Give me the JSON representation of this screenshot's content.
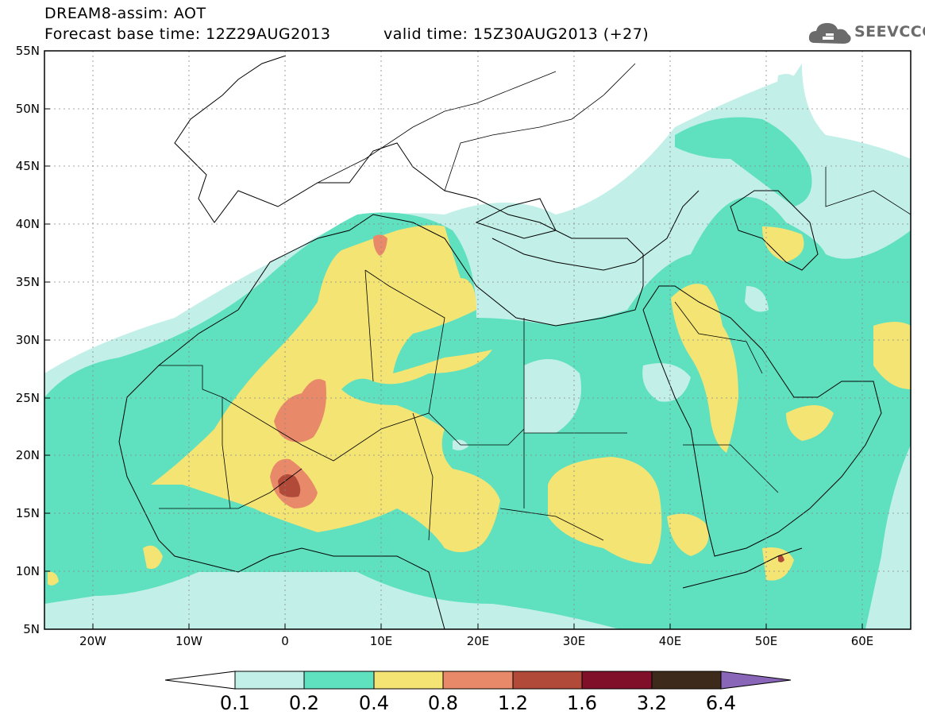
{
  "header": {
    "model_title": "DREAM8-assim: AOT",
    "base_time": "Forecast base time: 12Z29AUG2013",
    "valid_time": "valid time: 15Z30AUG2013 (+27)",
    "logo_text": "SEEVCCC",
    "logo_icon": "cloud-icon"
  },
  "axes": {
    "lat_labels": [
      "55N",
      "50N",
      "45N",
      "40N",
      "35N",
      "30N",
      "25N",
      "20N",
      "15N",
      "10N",
      "5N"
    ],
    "lon_labels": [
      "20W",
      "10W",
      "0",
      "10E",
      "20E",
      "30E",
      "40E",
      "50E",
      "60E"
    ]
  },
  "colorbar": {
    "colors": [
      "#c2f0e8",
      "#5fe0bf",
      "#f4e473",
      "#e88a6a",
      "#b24a3a",
      "#80102a",
      "#3e2a1a",
      "#8a66b8"
    ],
    "under_color": "#ffffff",
    "labels": [
      "0.1",
      "0.2",
      "0.4",
      "0.8",
      "1.2",
      "1.6",
      "3.2",
      "6.4"
    ]
  }
}
